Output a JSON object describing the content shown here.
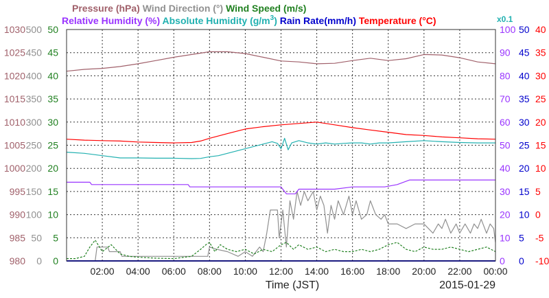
{
  "chart_data": {
    "type": "line",
    "date": "2015-01-29",
    "xlabel": "Time (JST)",
    "x_ticks": [
      "02:00",
      "04:00",
      "06:00",
      "08:00",
      "10:00",
      "12:00",
      "14:00",
      "16:00",
      "18:00",
      "20:00",
      "22:00",
      "00:00"
    ],
    "x_range_hours": [
      0,
      24
    ],
    "grid": true,
    "legend": {
      "row1": [
        {
          "label": "Pressure (hPa)",
          "color": "#a0606a"
        },
        {
          "label": "Wind Direction (°)",
          "color": "#909090"
        },
        {
          "label": "Wind Speed (m/s)",
          "color": "#208020"
        }
      ],
      "row2": [
        {
          "label": "Relative Humidity (%)",
          "color": "#9933ff"
        },
        {
          "label": "Absolute Humidity (g/m",
          "sup": "3",
          "tail": ")",
          "color": "#20b0b0"
        },
        {
          "label": "Rain Rate(mm/h)",
          "color": "#0000cc"
        },
        {
          "label": "Temperature (°C)",
          "color": "#ff0000"
        }
      ],
      "abs_humidity_scale": "x0.1"
    },
    "axes": {
      "pressure": {
        "color": "#a0606a",
        "ticks": [
          "1030",
          "1025",
          "1020",
          "1015",
          "1010",
          "1005",
          "1000",
          "995",
          "990",
          "985",
          "980"
        ],
        "range": [
          980,
          1030
        ]
      },
      "wind_direction": {
        "color": "#909090",
        "ticks": [
          "500",
          "450",
          "400",
          "350",
          "300",
          "250",
          "200",
          "150",
          "100",
          "50",
          "0"
        ],
        "range": [
          0,
          500
        ]
      },
      "wind_speed": {
        "color": "#208020",
        "ticks": [
          "50",
          "45",
          "40",
          "35",
          "30",
          "25",
          "20",
          "15",
          "10",
          "5",
          "0"
        ],
        "range": [
          0,
          50
        ]
      },
      "humidity": {
        "color": "#9933ff",
        "ticks": [
          "100",
          "90",
          "80",
          "70",
          "60",
          "50",
          "40",
          "30",
          "20",
          "10",
          "0"
        ],
        "range": [
          0,
          100
        ]
      },
      "rain_rate": {
        "color": "#0000cc",
        "ticks": [
          "50",
          "45",
          "40",
          "35",
          "30",
          "25",
          "20",
          "15",
          "10",
          "5",
          "0"
        ],
        "range": [
          0,
          50
        ]
      },
      "temperature": {
        "color": "#ff0000",
        "ticks": [
          "40",
          "35",
          "30",
          "25",
          "20",
          "15",
          "10",
          "5",
          "0",
          "-5",
          "-10"
        ],
        "range": [
          -10,
          40
        ]
      }
    },
    "series": [
      {
        "name": "Pressure (hPa)",
        "axis": "pressure",
        "color": "#a0606a",
        "points": [
          [
            0,
            1021.0
          ],
          [
            1,
            1021.4
          ],
          [
            2,
            1021.6
          ],
          [
            3,
            1022.0
          ],
          [
            4,
            1022.6
          ],
          [
            5,
            1023.3
          ],
          [
            6,
            1024.0
          ],
          [
            7,
            1024.6
          ],
          [
            8,
            1025.2
          ],
          [
            9,
            1025.2
          ],
          [
            10,
            1024.8
          ],
          [
            11,
            1024.0
          ],
          [
            12,
            1023.2
          ],
          [
            13,
            1023.0
          ],
          [
            14,
            1022.6
          ],
          [
            15,
            1022.7
          ],
          [
            16,
            1023.3
          ],
          [
            17,
            1023.8
          ],
          [
            18,
            1023.3
          ],
          [
            19,
            1023.7
          ],
          [
            20,
            1024.6
          ],
          [
            21,
            1024.5
          ],
          [
            22,
            1023.9
          ],
          [
            23,
            1023.0
          ],
          [
            24,
            1022.6
          ]
        ]
      },
      {
        "name": "Wind Direction (°)",
        "axis": "wind_direction",
        "color": "#909090",
        "points": [
          [
            0,
            0
          ],
          [
            0.5,
            0
          ],
          [
            1.6,
            0
          ],
          [
            1.7,
            30
          ],
          [
            2.3,
            30
          ],
          [
            2.4,
            20
          ],
          [
            3.0,
            20
          ],
          [
            3.1,
            10
          ],
          [
            7.9,
            10
          ],
          [
            8.0,
            30
          ],
          [
            8.4,
            25
          ],
          [
            9.0,
            20
          ],
          [
            9.6,
            10
          ],
          [
            10.0,
            20
          ],
          [
            10.4,
            10
          ],
          [
            10.8,
            30
          ],
          [
            11.0,
            20
          ],
          [
            11.2,
            60
          ],
          [
            11.4,
            110
          ],
          [
            11.8,
            110
          ],
          [
            11.9,
            50
          ],
          [
            12.1,
            110
          ],
          [
            12.3,
            30
          ],
          [
            12.5,
            130
          ],
          [
            12.7,
            90
          ],
          [
            12.9,
            150
          ],
          [
            13.1,
            120
          ],
          [
            13.3,
            150
          ],
          [
            13.5,
            130
          ],
          [
            13.8,
            150
          ],
          [
            14.0,
            110
          ],
          [
            14.2,
            140
          ],
          [
            14.4,
            120
          ],
          [
            14.6,
            60
          ],
          [
            14.8,
            120
          ],
          [
            15.0,
            90
          ],
          [
            15.2,
            130
          ],
          [
            15.5,
            100
          ],
          [
            15.8,
            140
          ],
          [
            16.0,
            100
          ],
          [
            16.2,
            130
          ],
          [
            16.5,
            90
          ],
          [
            16.8,
            100
          ],
          [
            17.0,
            130
          ],
          [
            17.3,
            100
          ],
          [
            17.6,
            90
          ],
          [
            17.8,
            100
          ],
          [
            18.0,
            80
          ],
          [
            18.5,
            80
          ],
          [
            19.0,
            70
          ],
          [
            19.5,
            80
          ],
          [
            20.0,
            80
          ],
          [
            20.5,
            60
          ],
          [
            20.8,
            80
          ],
          [
            21.0,
            70
          ],
          [
            21.2,
            90
          ],
          [
            21.5,
            60
          ],
          [
            21.8,
            80
          ],
          [
            22.0,
            60
          ],
          [
            22.3,
            80
          ],
          [
            22.6,
            60
          ],
          [
            22.8,
            80
          ],
          [
            23.0,
            70
          ],
          [
            23.2,
            90
          ],
          [
            23.5,
            60
          ],
          [
            23.7,
            80
          ],
          [
            23.9,
            70
          ],
          [
            24,
            40
          ]
        ]
      },
      {
        "name": "Wind Speed (m/s)",
        "axis": "wind_speed",
        "color": "#208020",
        "points": [
          [
            0,
            0.5
          ],
          [
            0.5,
            0.5
          ],
          [
            1,
            1.0
          ],
          [
            1.3,
            3.0
          ],
          [
            1.6,
            4.5
          ],
          [
            2.0,
            2.0
          ],
          [
            2.5,
            3.5
          ],
          [
            3.0,
            1.5
          ],
          [
            3.5,
            1.0
          ],
          [
            4.0,
            0.8
          ],
          [
            5.0,
            0.6
          ],
          [
            6.0,
            0.5
          ],
          [
            7.0,
            1.0
          ],
          [
            7.5,
            2.5
          ],
          [
            7.8,
            3.5
          ],
          [
            8.0,
            4.0
          ],
          [
            8.3,
            2.0
          ],
          [
            8.6,
            3.5
          ],
          [
            9.0,
            2.5
          ],
          [
            9.5,
            2.0
          ],
          [
            10.0,
            2.5
          ],
          [
            10.5,
            1.5
          ],
          [
            11.0,
            2.5
          ],
          [
            11.5,
            2.0
          ],
          [
            12.0,
            3.5
          ],
          [
            12.3,
            4.0
          ],
          [
            12.7,
            2.5
          ],
          [
            13.0,
            3.5
          ],
          [
            13.5,
            2.5
          ],
          [
            14.0,
            3.0
          ],
          [
            14.5,
            2.0
          ],
          [
            15.0,
            2.5
          ],
          [
            15.5,
            2.0
          ],
          [
            16.0,
            2.0
          ],
          [
            16.5,
            2.5
          ],
          [
            17.0,
            2.0
          ],
          [
            17.5,
            2.5
          ],
          [
            18.0,
            3.5
          ],
          [
            18.5,
            4.0
          ],
          [
            19.0,
            2.5
          ],
          [
            19.5,
            2.0
          ],
          [
            20.0,
            3.0
          ],
          [
            20.5,
            2.5
          ],
          [
            21.0,
            2.5
          ],
          [
            21.5,
            3.0
          ],
          [
            22.0,
            2.5
          ],
          [
            22.5,
            2.0
          ],
          [
            23.0,
            2.5
          ],
          [
            23.5,
            3.0
          ],
          [
            24,
            2.0
          ]
        ]
      },
      {
        "name": "Relative Humidity (%)",
        "axis": "humidity",
        "color": "#9933ff",
        "points": [
          [
            0,
            34
          ],
          [
            1.3,
            34
          ],
          [
            1.4,
            33
          ],
          [
            6.8,
            33
          ],
          [
            6.9,
            32
          ],
          [
            12.0,
            32
          ],
          [
            12.3,
            29
          ],
          [
            12.8,
            29
          ],
          [
            13.0,
            31
          ],
          [
            15.0,
            31
          ],
          [
            16.0,
            32
          ],
          [
            17.8,
            32
          ],
          [
            18.5,
            33
          ],
          [
            19.2,
            35
          ],
          [
            24,
            35
          ]
        ]
      },
      {
        "name": "Absolute Humidity (g/m3) x0.1",
        "axis": "humidity",
        "color": "#20b0b0",
        "points": [
          [
            0,
            47
          ],
          [
            1,
            46.5
          ],
          [
            2,
            45.5
          ],
          [
            3,
            44.5
          ],
          [
            4,
            44.5
          ],
          [
            5,
            44.4
          ],
          [
            6,
            44.4
          ],
          [
            7,
            44.2
          ],
          [
            7.5,
            44.3
          ],
          [
            8,
            45.0
          ],
          [
            8.5,
            45.5
          ],
          [
            9,
            46.5
          ],
          [
            9.5,
            47.5
          ],
          [
            10,
            48.5
          ],
          [
            10.5,
            49.5
          ],
          [
            11,
            50.5
          ],
          [
            11.5,
            51.5
          ],
          [
            11.8,
            50.8
          ],
          [
            12,
            48.5
          ],
          [
            12.2,
            53
          ],
          [
            12.4,
            48
          ],
          [
            12.6,
            51
          ],
          [
            13,
            52
          ],
          [
            13.5,
            51
          ],
          [
            14,
            50.5
          ],
          [
            14.5,
            51
          ],
          [
            15,
            50.5
          ],
          [
            15.5,
            50.8
          ],
          [
            16,
            51
          ],
          [
            16.5,
            51
          ],
          [
            17,
            50.5
          ],
          [
            17.5,
            51
          ],
          [
            18,
            51
          ],
          [
            19,
            51.5
          ],
          [
            20,
            52
          ],
          [
            21,
            51.5
          ],
          [
            22,
            51.2
          ],
          [
            23,
            51
          ],
          [
            24,
            51
          ]
        ]
      },
      {
        "name": "Rain Rate(mm/h)",
        "axis": "rain_rate",
        "color": "#0000cc",
        "points": [
          [
            0,
            0
          ],
          [
            24,
            0
          ]
        ]
      },
      {
        "name": "Temperature (°C)",
        "axis": "temperature",
        "color": "#ff0000",
        "points": [
          [
            0,
            16.3
          ],
          [
            1,
            16.1
          ],
          [
            2,
            16.0
          ],
          [
            3,
            15.9
          ],
          [
            4,
            15.7
          ],
          [
            5,
            15.6
          ],
          [
            6,
            15.5
          ],
          [
            7,
            15.6
          ],
          [
            7.5,
            15.9
          ],
          [
            8,
            16.5
          ],
          [
            9,
            17.5
          ],
          [
            10,
            18.5
          ],
          [
            11,
            19.0
          ],
          [
            12,
            19.4
          ],
          [
            13,
            19.7
          ],
          [
            14,
            20.0
          ],
          [
            15,
            19.4
          ],
          [
            16,
            18.8
          ],
          [
            17,
            18.3
          ],
          [
            18,
            17.8
          ],
          [
            19,
            17.3
          ],
          [
            20,
            17.1
          ],
          [
            21,
            16.8
          ],
          [
            22,
            16.6
          ],
          [
            23,
            16.4
          ],
          [
            24,
            16.3
          ]
        ]
      }
    ]
  }
}
